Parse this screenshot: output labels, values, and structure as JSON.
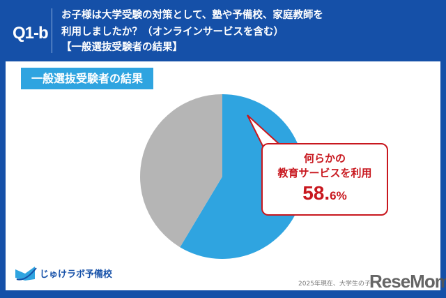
{
  "header": {
    "q_label": "Q1-b",
    "line1": "お子様は大学受験の対策として、塾や予備校、家庭教師を",
    "line2": "利用しましたか？（オンラインサービスを含む）",
    "line3": "【一般選抜受験者の結果】"
  },
  "tag": "一般選抜受験者の結果",
  "chart_data": {
    "type": "pie",
    "slices": [
      {
        "label": "何らかの教育サービスを利用",
        "value": 58.6,
        "color": "#2fa4e0"
      },
      {
        "label": "",
        "value": 41.4,
        "color": "#b5b5b5"
      }
    ]
  },
  "callout": {
    "line1": "何らかの",
    "line2": "教育サービスを利用",
    "value_int": "58.",
    "value_dec": "6%"
  },
  "footer": {
    "logo_text": "じゅけラボ予備校",
    "note": "2025年現在、大学生の子",
    "watermark": "ReseMom"
  }
}
